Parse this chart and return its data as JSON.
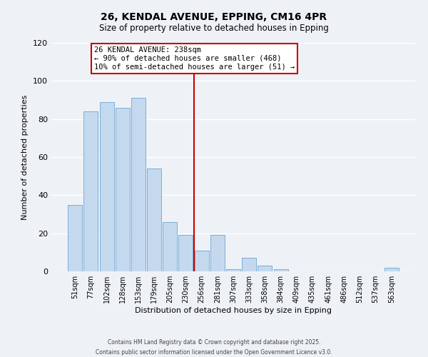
{
  "title": "26, KENDAL AVENUE, EPPING, CM16 4PR",
  "subtitle": "Size of property relative to detached houses in Epping",
  "xlabel": "Distribution of detached houses by size in Epping",
  "ylabel": "Number of detached properties",
  "bar_labels": [
    "51sqm",
    "77sqm",
    "102sqm",
    "128sqm",
    "153sqm",
    "179sqm",
    "205sqm",
    "230sqm",
    "256sqm",
    "281sqm",
    "307sqm",
    "333sqm",
    "358sqm",
    "384sqm",
    "409sqm",
    "435sqm",
    "461sqm",
    "486sqm",
    "512sqm",
    "537sqm",
    "563sqm"
  ],
  "bar_heights": [
    35,
    84,
    89,
    86,
    91,
    54,
    26,
    19,
    11,
    19,
    1,
    7,
    3,
    1,
    0,
    0,
    0,
    0,
    0,
    0,
    2
  ],
  "bar_color": "#c5d9ee",
  "bar_edge_color": "#7aaed6",
  "vline_x": 7.5,
  "vline_color": "#cc0000",
  "annotation_title": "26 KENDAL AVENUE: 238sqm",
  "annotation_line1": "← 90% of detached houses are smaller (468)",
  "annotation_line2": "10% of semi-detached houses are larger (51) →",
  "annotation_box_color": "#ffffff",
  "annotation_box_edge": "#cc0000",
  "ylim": [
    0,
    120
  ],
  "yticks": [
    0,
    20,
    40,
    60,
    80,
    100,
    120
  ],
  "bg_color": "#eef2f7",
  "grid_color": "#ffffff",
  "footer1": "Contains HM Land Registry data © Crown copyright and database right 2025.",
  "footer2": "Contains public sector information licensed under the Open Government Licence v3.0."
}
